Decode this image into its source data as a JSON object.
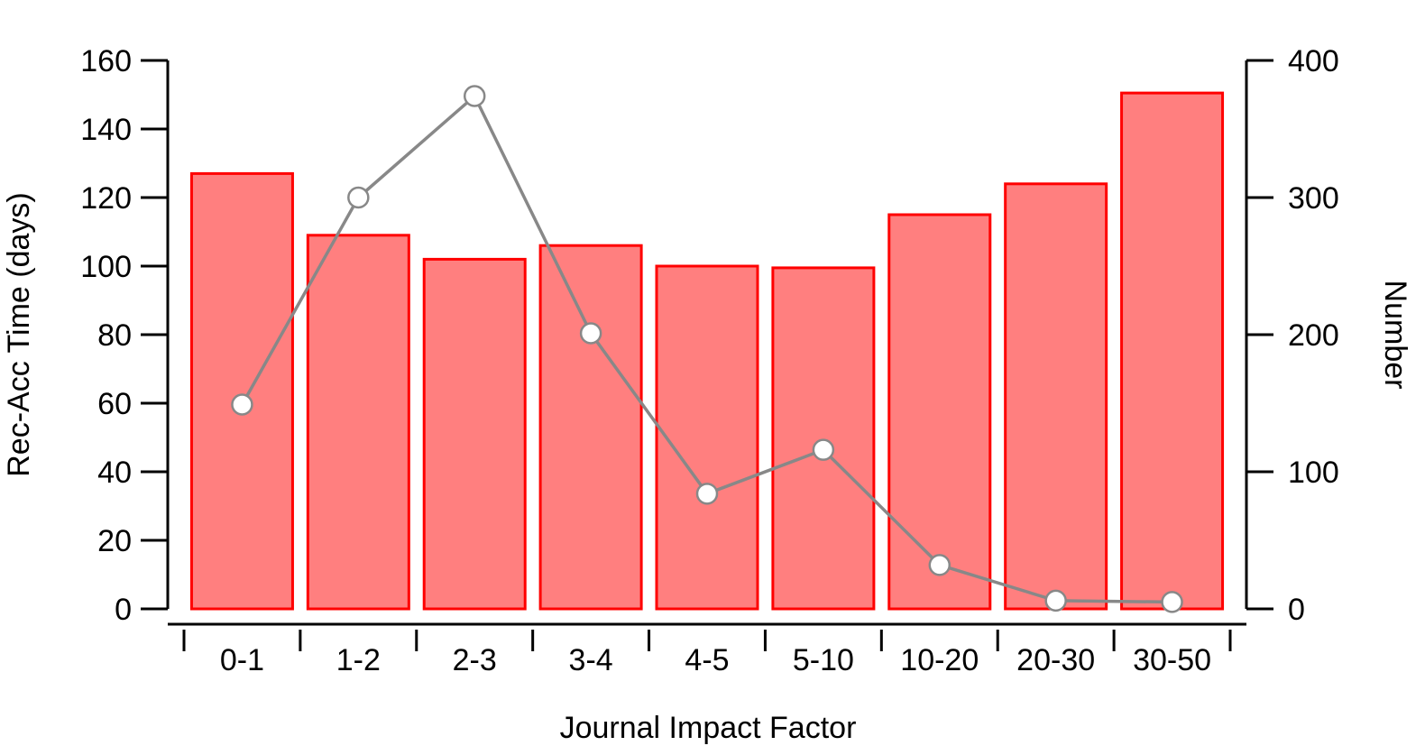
{
  "chart_data": {
    "type": "bar",
    "title": "",
    "xlabel": "Journal Impact Factor",
    "ylabel": "Rec-Acc Time (days)",
    "y2label": "Number",
    "categories": [
      "0-1",
      "1-2",
      "2-3",
      "3-4",
      "4-5",
      "5-10",
      "10-20",
      "20-30",
      "30-50"
    ],
    "ylim": [
      0,
      160
    ],
    "y2lim": [
      0,
      400
    ],
    "yticks": [
      0,
      20,
      40,
      60,
      80,
      100,
      120,
      140,
      160
    ],
    "y2ticks": [
      0,
      100,
      200,
      300,
      400
    ],
    "grid": false,
    "series": [
      {
        "type": "bar",
        "axis": "left",
        "values": [
          127,
          109,
          102,
          106,
          100,
          99.5,
          115,
          124,
          150.5
        ]
      },
      {
        "type": "line",
        "axis": "right",
        "values": [
          149,
          300,
          374,
          201,
          84,
          116,
          32,
          6,
          5
        ]
      }
    ],
    "colors": {
      "bar_fill": "#ff7f7f",
      "bar_stroke": "#ff0000",
      "line": "#888888",
      "marker_fill": "#ffffff",
      "marker_stroke": "#888888",
      "axis": "#000000"
    }
  }
}
